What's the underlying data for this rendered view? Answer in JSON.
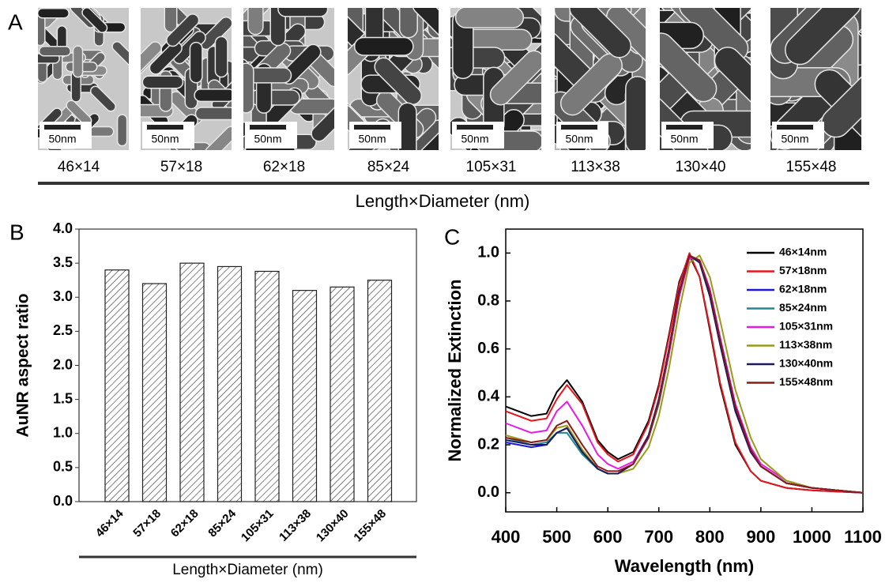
{
  "panel_labels": [
    "A",
    "B",
    "C"
  ],
  "tem": {
    "scale_bar": "50nm",
    "samples": [
      "46×14",
      "57×18",
      "62×18",
      "85×24",
      "105×31",
      "113×38",
      "130×40",
      "155×48"
    ],
    "axis_label": "Length×Diameter (nm)"
  },
  "chart_data": [
    {
      "type": "bar",
      "x_label": "Length×Diameter (nm)",
      "y_label": "AuNR aspect ratio",
      "categories": [
        "46×14",
        "57×18",
        "62×18",
        "85×24",
        "105×31",
        "113×38",
        "130×40",
        "155×48"
      ],
      "values": [
        3.4,
        3.2,
        3.5,
        3.45,
        3.38,
        3.1,
        3.15,
        3.25
      ],
      "ylim": [
        0,
        4
      ],
      "yticks": [
        {
          "value": 0,
          "label": "0.0"
        },
        0.5,
        {
          "value": 1,
          "label": "1.0"
        },
        1.5,
        {
          "value": 2,
          "label": "2.0"
        },
        2.5,
        {
          "value": 3,
          "label": "3.0"
        },
        3.5,
        {
          "value": 4,
          "label": "4.0"
        }
      ]
    },
    {
      "type": "line",
      "x_label": "Wavelength (nm)",
      "y_label": "Normalized Extinction",
      "x": [
        400,
        450,
        480,
        500,
        520,
        550,
        580,
        600,
        620,
        650,
        680,
        700,
        720,
        740,
        760,
        780,
        800,
        820,
        850,
        880,
        900,
        950,
        1000,
        1050,
        1100
      ],
      "series": [
        {
          "name": "46×14nm",
          "color": "#000000",
          "values": [
            0.36,
            0.32,
            0.33,
            0.42,
            0.47,
            0.38,
            0.22,
            0.17,
            0.14,
            0.17,
            0.3,
            0.45,
            0.66,
            0.88,
            0.99,
            0.9,
            0.68,
            0.45,
            0.2,
            0.09,
            0.05,
            0.02,
            0.01,
            0.005,
            0
          ]
        },
        {
          "name": "57×18nm",
          "color": "#e8141c",
          "values": [
            0.34,
            0.3,
            0.31,
            0.39,
            0.45,
            0.37,
            0.21,
            0.16,
            0.13,
            0.16,
            0.29,
            0.44,
            0.65,
            0.87,
            1.0,
            0.9,
            0.69,
            0.46,
            0.21,
            0.09,
            0.05,
            0.02,
            0.01,
            0.005,
            0
          ]
        },
        {
          "name": "62×18nm",
          "color": "#1a1adc",
          "values": [
            0.21,
            0.19,
            0.2,
            0.25,
            0.27,
            0.17,
            0.1,
            0.08,
            0.08,
            0.12,
            0.24,
            0.39,
            0.6,
            0.84,
            0.99,
            0.96,
            0.82,
            0.62,
            0.34,
            0.17,
            0.11,
            0.04,
            0.02,
            0.01,
            0
          ]
        },
        {
          "name": "85×24nm",
          "color": "#1e8c8c",
          "values": [
            0.23,
            0.2,
            0.21,
            0.25,
            0.25,
            0.16,
            0.1,
            0.08,
            0.08,
            0.12,
            0.23,
            0.37,
            0.58,
            0.82,
            0.98,
            0.97,
            0.83,
            0.63,
            0.35,
            0.18,
            0.11,
            0.04,
            0.02,
            0.01,
            0
          ]
        },
        {
          "name": "105×31nm",
          "color": "#e619e6",
          "values": [
            0.29,
            0.25,
            0.26,
            0.34,
            0.38,
            0.28,
            0.16,
            0.12,
            0.1,
            0.13,
            0.24,
            0.38,
            0.58,
            0.82,
            0.98,
            0.97,
            0.85,
            0.65,
            0.37,
            0.19,
            0.12,
            0.05,
            0.02,
            0.01,
            0
          ]
        },
        {
          "name": "113×38nm",
          "color": "#9a9a1a",
          "values": [
            0.24,
            0.21,
            0.22,
            0.27,
            0.28,
            0.18,
            0.1,
            0.08,
            0.08,
            0.1,
            0.19,
            0.32,
            0.52,
            0.76,
            0.96,
            0.99,
            0.9,
            0.72,
            0.43,
            0.23,
            0.14,
            0.05,
            0.02,
            0.01,
            0
          ]
        },
        {
          "name": "130×40nm",
          "color": "#1a1a5a",
          "values": [
            0.22,
            0.2,
            0.2,
            0.25,
            0.27,
            0.17,
            0.1,
            0.08,
            0.08,
            0.12,
            0.24,
            0.39,
            0.6,
            0.84,
            0.99,
            0.96,
            0.82,
            0.62,
            0.34,
            0.17,
            0.11,
            0.04,
            0.02,
            0.01,
            0
          ]
        },
        {
          "name": "155×48nm",
          "color": "#8c1a1a",
          "values": [
            0.23,
            0.21,
            0.22,
            0.28,
            0.3,
            0.2,
            0.11,
            0.09,
            0.09,
            0.12,
            0.23,
            0.38,
            0.59,
            0.83,
            0.99,
            0.97,
            0.84,
            0.64,
            0.36,
            0.18,
            0.11,
            0.04,
            0.02,
            0.01,
            0
          ]
        }
      ],
      "xlim": [
        400,
        1100
      ],
      "xticks": [
        400,
        500,
        600,
        700,
        800,
        900,
        1000,
        1100
      ],
      "ylim": [
        -0.08,
        1.1
      ],
      "yticks": [
        {
          "value": 0,
          "label": "0.0"
        },
        0.2,
        0.4,
        0.6,
        0.8,
        {
          "value": 1,
          "label": "1.0"
        }
      ]
    }
  ]
}
